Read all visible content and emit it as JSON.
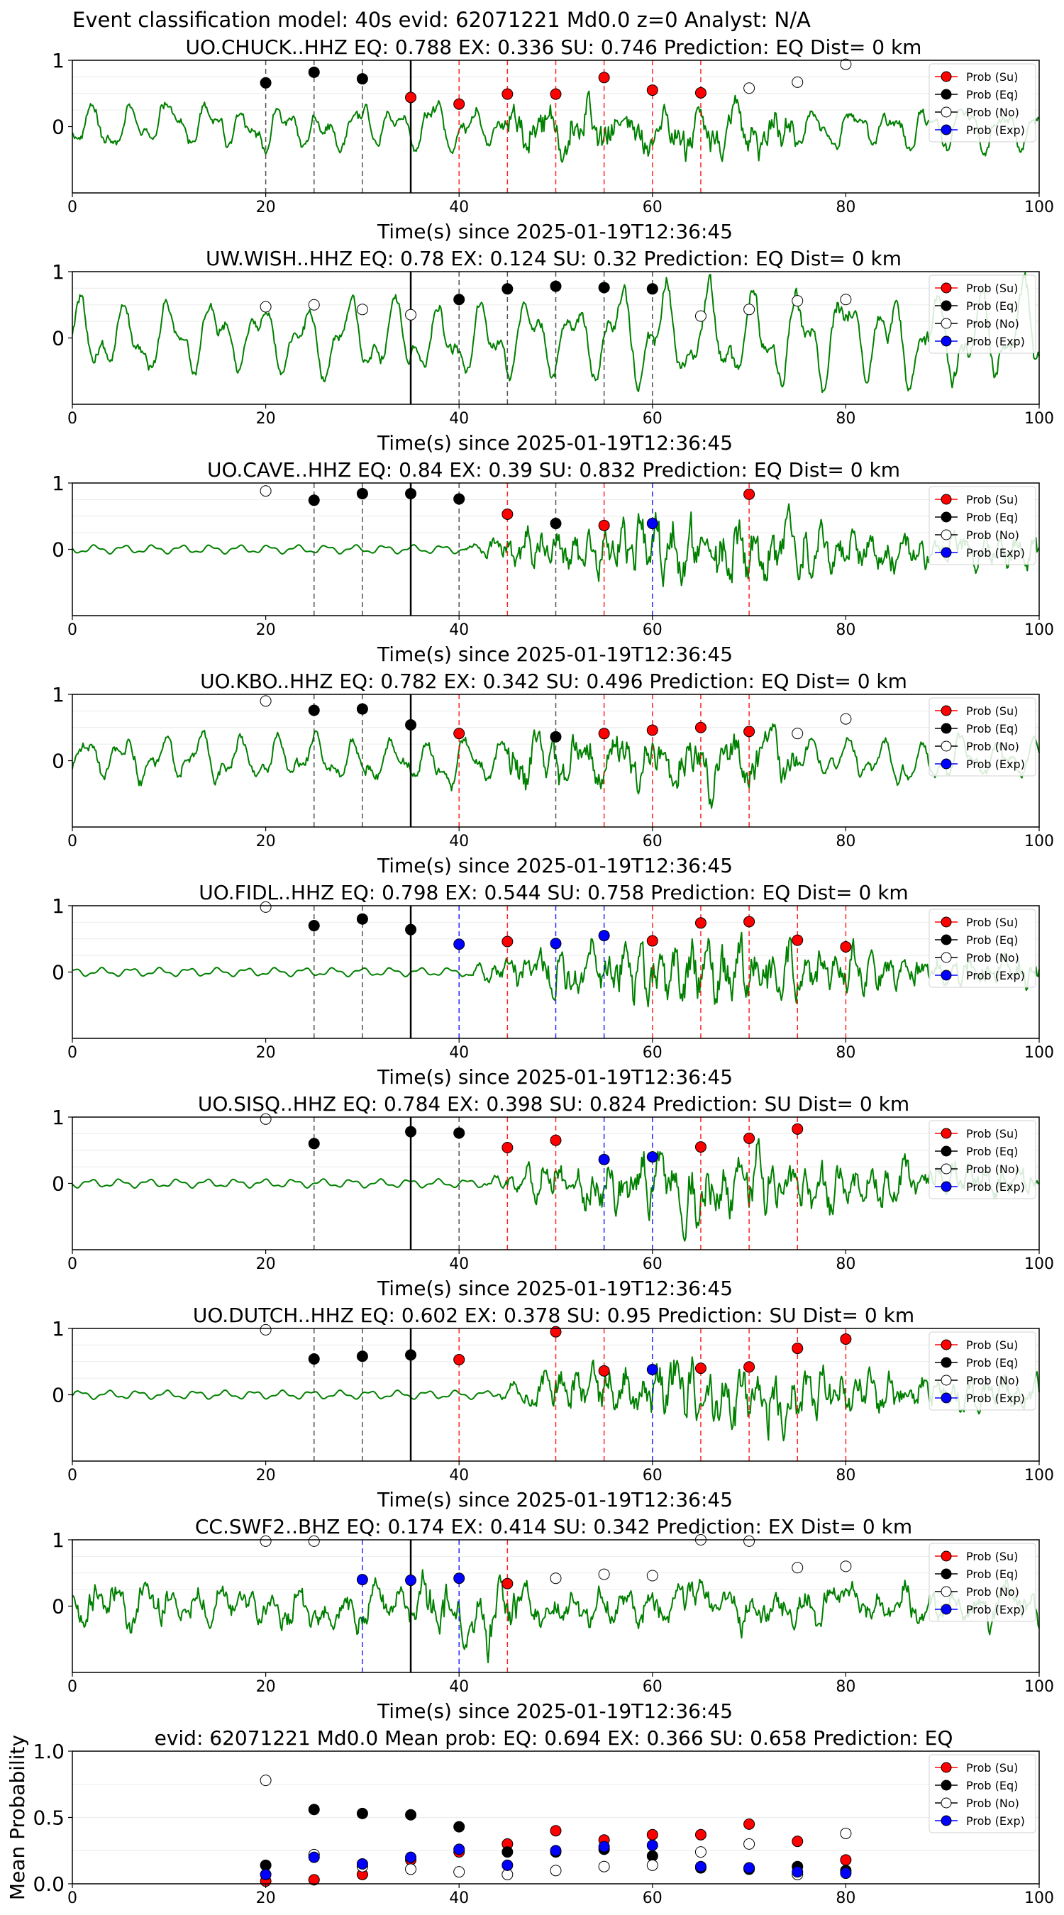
{
  "figure": {
    "suptitle": "Event classification model: 40s evid: 62071221 Md0.0 z=0 Analyst: N/A"
  },
  "legend_labels": [
    "Prob (Su)",
    "Prob (Eq)",
    "Prob (No)",
    "Prob (Exp)"
  ],
  "colors": {
    "trace": "#008000",
    "su": "#ff0000",
    "eq": "#000000",
    "no": "#ffffff",
    "exp": "#0000ff",
    "ref_line": "#000000",
    "grid": "#ebebeb"
  },
  "chart_data": [
    {
      "type": "line",
      "title": "UO.CHUCK..HHZ   EQ: 0.788  EX: 0.336  SU: 0.746   Prediction: EQ    Dist= 0 km",
      "xlabel": "Time(s) since 2025-01-19T12:36:45",
      "xlim": [
        0,
        100
      ],
      "xticks": [
        0,
        20,
        40,
        60,
        80,
        100
      ],
      "yticks": [
        0,
        1
      ],
      "legend_position": "top-right",
      "reference_line_x": 35,
      "amplitude_style": "moderate",
      "probabilities": [
        {
          "t": 20,
          "class": "eq",
          "p": 0.66
        },
        {
          "t": 25,
          "class": "eq",
          "p": 0.82
        },
        {
          "t": 30,
          "class": "eq",
          "p": 0.72
        },
        {
          "t": 35,
          "class": "su",
          "p": 0.44
        },
        {
          "t": 40,
          "class": "su",
          "p": 0.34
        },
        {
          "t": 45,
          "class": "su",
          "p": 0.49
        },
        {
          "t": 50,
          "class": "su",
          "p": 0.49
        },
        {
          "t": 55,
          "class": "su",
          "p": 0.74
        },
        {
          "t": 60,
          "class": "su",
          "p": 0.55
        },
        {
          "t": 65,
          "class": "su",
          "p": 0.51
        },
        {
          "t": 70,
          "class": "no",
          "p": 0.58
        },
        {
          "t": 75,
          "class": "no",
          "p": 0.67
        },
        {
          "t": 80,
          "class": "no",
          "p": 0.94
        }
      ]
    },
    {
      "type": "line",
      "title": "UW.WISH..HHZ   EQ: 0.78  EX: 0.124  SU: 0.32   Prediction: EQ    Dist= 0 km",
      "xlabel": "Time(s) since 2025-01-19T12:36:45",
      "xlim": [
        0,
        100
      ],
      "xticks": [
        0,
        20,
        40,
        60,
        80,
        100
      ],
      "yticks": [
        0,
        1
      ],
      "legend_position": "top-right",
      "reference_line_x": 35,
      "amplitude_style": "high",
      "probabilities": [
        {
          "t": 20,
          "class": "no",
          "p": 0.47
        },
        {
          "t": 25,
          "class": "no",
          "p": 0.5
        },
        {
          "t": 30,
          "class": "no",
          "p": 0.43
        },
        {
          "t": 35,
          "class": "no",
          "p": 0.35
        },
        {
          "t": 40,
          "class": "eq",
          "p": 0.58
        },
        {
          "t": 45,
          "class": "eq",
          "p": 0.74
        },
        {
          "t": 50,
          "class": "eq",
          "p": 0.78
        },
        {
          "t": 55,
          "class": "eq",
          "p": 0.76
        },
        {
          "t": 60,
          "class": "eq",
          "p": 0.74
        },
        {
          "t": 65,
          "class": "no",
          "p": 0.33
        },
        {
          "t": 70,
          "class": "no",
          "p": 0.43
        },
        {
          "t": 75,
          "class": "no",
          "p": 0.56
        },
        {
          "t": 80,
          "class": "no",
          "p": 0.58
        }
      ]
    },
    {
      "type": "line",
      "title": "UO.CAVE..HHZ   EQ: 0.84  EX: 0.39  SU: 0.832   Prediction: EQ    Dist= 0 km",
      "xlabel": "Time(s) since 2025-01-19T12:36:45",
      "xlim": [
        0,
        100
      ],
      "xticks": [
        0,
        20,
        40,
        60,
        80,
        100
      ],
      "yticks": [
        0,
        1
      ],
      "legend_position": "top-right",
      "reference_line_x": 35,
      "amplitude_style": "quiet-then-burst",
      "burst_start": 40,
      "probabilities": [
        {
          "t": 20,
          "class": "no",
          "p": 0.88
        },
        {
          "t": 25,
          "class": "eq",
          "p": 0.74
        },
        {
          "t": 30,
          "class": "eq",
          "p": 0.84
        },
        {
          "t": 35,
          "class": "eq",
          "p": 0.84
        },
        {
          "t": 40,
          "class": "eq",
          "p": 0.76
        },
        {
          "t": 45,
          "class": "su",
          "p": 0.53
        },
        {
          "t": 50,
          "class": "eq",
          "p": 0.39
        },
        {
          "t": 55,
          "class": "su",
          "p": 0.36
        },
        {
          "t": 60,
          "class": "exp",
          "p": 0.39
        },
        {
          "t": 70,
          "class": "su",
          "p": 0.83
        }
      ]
    },
    {
      "type": "line",
      "title": "UO.KBO..HHZ   EQ: 0.782  EX: 0.342  SU: 0.496   Prediction: EQ    Dist= 0 km",
      "xlabel": "Time(s) since 2025-01-19T12:36:45",
      "xlim": [
        0,
        100
      ],
      "xticks": [
        0,
        20,
        40,
        60,
        80,
        100
      ],
      "yticks": [
        0,
        1
      ],
      "legend_position": "top-right",
      "reference_line_x": 35,
      "amplitude_style": "moderate",
      "probabilities": [
        {
          "t": 20,
          "class": "no",
          "p": 0.9
        },
        {
          "t": 25,
          "class": "eq",
          "p": 0.76
        },
        {
          "t": 30,
          "class": "eq",
          "p": 0.78
        },
        {
          "t": 35,
          "class": "eq",
          "p": 0.54
        },
        {
          "t": 40,
          "class": "su",
          "p": 0.41
        },
        {
          "t": 50,
          "class": "eq",
          "p": 0.36
        },
        {
          "t": 55,
          "class": "su",
          "p": 0.41
        },
        {
          "t": 60,
          "class": "su",
          "p": 0.46
        },
        {
          "t": 65,
          "class": "su",
          "p": 0.5
        },
        {
          "t": 70,
          "class": "su",
          "p": 0.44
        },
        {
          "t": 75,
          "class": "no",
          "p": 0.41
        },
        {
          "t": 80,
          "class": "no",
          "p": 0.63
        }
      ]
    },
    {
      "type": "line",
      "title": "UO.FIDL..HHZ   EQ: 0.798  EX: 0.544  SU: 0.758   Prediction: EQ    Dist= 0 km",
      "xlabel": "Time(s) since 2025-01-19T12:36:45",
      "xlim": [
        0,
        100
      ],
      "xticks": [
        0,
        20,
        40,
        60,
        80,
        100
      ],
      "yticks": [
        0,
        1
      ],
      "legend_position": "top-right",
      "reference_line_x": 35,
      "amplitude_style": "quiet-then-burst",
      "burst_start": 40,
      "probabilities": [
        {
          "t": 20,
          "class": "no",
          "p": 0.98
        },
        {
          "t": 25,
          "class": "eq",
          "p": 0.7
        },
        {
          "t": 30,
          "class": "eq",
          "p": 0.8
        },
        {
          "t": 35,
          "class": "eq",
          "p": 0.64
        },
        {
          "t": 40,
          "class": "exp",
          "p": 0.42
        },
        {
          "t": 45,
          "class": "su",
          "p": 0.46
        },
        {
          "t": 50,
          "class": "exp",
          "p": 0.43
        },
        {
          "t": 55,
          "class": "exp",
          "p": 0.55
        },
        {
          "t": 60,
          "class": "su",
          "p": 0.47
        },
        {
          "t": 65,
          "class": "su",
          "p": 0.74
        },
        {
          "t": 70,
          "class": "su",
          "p": 0.76
        },
        {
          "t": 75,
          "class": "su",
          "p": 0.48
        },
        {
          "t": 80,
          "class": "su",
          "p": 0.38
        }
      ]
    },
    {
      "type": "line",
      "title": "UO.SISQ..HHZ   EQ: 0.784  EX: 0.398  SU: 0.824   Prediction: SU    Dist= 0 km",
      "xlabel": "Time(s) since 2025-01-19T12:36:45",
      "xlim": [
        0,
        100
      ],
      "xticks": [
        0,
        20,
        40,
        60,
        80,
        100
      ],
      "yticks": [
        0,
        1
      ],
      "legend_position": "top-right",
      "reference_line_x": 35,
      "amplitude_style": "quiet-then-burst",
      "burst_start": 42,
      "probabilities": [
        {
          "t": 20,
          "class": "no",
          "p": 0.97
        },
        {
          "t": 25,
          "class": "eq",
          "p": 0.6
        },
        {
          "t": 35,
          "class": "eq",
          "p": 0.78
        },
        {
          "t": 40,
          "class": "eq",
          "p": 0.76
        },
        {
          "t": 45,
          "class": "su",
          "p": 0.54
        },
        {
          "t": 50,
          "class": "su",
          "p": 0.65
        },
        {
          "t": 55,
          "class": "exp",
          "p": 0.36
        },
        {
          "t": 60,
          "class": "exp",
          "p": 0.4
        },
        {
          "t": 65,
          "class": "su",
          "p": 0.55
        },
        {
          "t": 70,
          "class": "su",
          "p": 0.68
        },
        {
          "t": 75,
          "class": "su",
          "p": 0.82
        }
      ]
    },
    {
      "type": "line",
      "title": "UO.DUTCH..HHZ   EQ: 0.602  EX: 0.378  SU: 0.95   Prediction: SU    Dist= 0 km",
      "xlabel": "Time(s) since 2025-01-19T12:36:45",
      "xlim": [
        0,
        100
      ],
      "xticks": [
        0,
        20,
        40,
        60,
        80,
        100
      ],
      "yticks": [
        0,
        1
      ],
      "legend_position": "top-right",
      "reference_line_x": 35,
      "amplitude_style": "quiet-then-burst",
      "burst_start": 43,
      "probabilities": [
        {
          "t": 20,
          "class": "no",
          "p": 0.98
        },
        {
          "t": 25,
          "class": "eq",
          "p": 0.54
        },
        {
          "t": 30,
          "class": "eq",
          "p": 0.58
        },
        {
          "t": 35,
          "class": "eq",
          "p": 0.6
        },
        {
          "t": 40,
          "class": "su",
          "p": 0.53
        },
        {
          "t": 50,
          "class": "su",
          "p": 0.95
        },
        {
          "t": 55,
          "class": "su",
          "p": 0.36
        },
        {
          "t": 60,
          "class": "exp",
          "p": 0.38
        },
        {
          "t": 65,
          "class": "su",
          "p": 0.4
        },
        {
          "t": 70,
          "class": "su",
          "p": 0.42
        },
        {
          "t": 75,
          "class": "su",
          "p": 0.7
        },
        {
          "t": 80,
          "class": "su",
          "p": 0.84
        }
      ]
    },
    {
      "type": "line",
      "title": "CC.SWF2..BHZ   EQ: 0.174  EX: 0.414  SU: 0.342   Prediction: EX    Dist= 0 km",
      "xlabel": "Time(s) since 2025-01-19T12:36:45",
      "xlim": [
        0,
        100
      ],
      "xticks": [
        0,
        20,
        40,
        60,
        80,
        100
      ],
      "yticks": [
        0,
        1
      ],
      "legend_position": "top-right",
      "reference_line_x": 35,
      "amplitude_style": "noisy",
      "probabilities": [
        {
          "t": 20,
          "class": "no",
          "p": 0.98
        },
        {
          "t": 25,
          "class": "no",
          "p": 0.98
        },
        {
          "t": 30,
          "class": "exp",
          "p": 0.4
        },
        {
          "t": 35,
          "class": "exp",
          "p": 0.39
        },
        {
          "t": 40,
          "class": "exp",
          "p": 0.42
        },
        {
          "t": 45,
          "class": "su",
          "p": 0.34
        },
        {
          "t": 50,
          "class": "no",
          "p": 0.42
        },
        {
          "t": 55,
          "class": "no",
          "p": 0.48
        },
        {
          "t": 60,
          "class": "no",
          "p": 0.46
        },
        {
          "t": 65,
          "class": "no",
          "p": 1.0
        },
        {
          "t": 70,
          "class": "no",
          "p": 0.98
        },
        {
          "t": 75,
          "class": "no",
          "p": 0.58
        },
        {
          "t": 80,
          "class": "no",
          "p": 0.6
        }
      ]
    },
    {
      "type": "scatter",
      "title": "evid: 62071221   Md0.0   Mean prob:    EQ: 0.694  EX: 0.366  SU: 0.658   Prediction: EQ",
      "xlabel": "",
      "ylabel": "Mean Probability",
      "xlim": [
        0,
        100
      ],
      "ylim": [
        0,
        1.0
      ],
      "xticks": [
        0,
        20,
        40,
        60,
        80,
        100
      ],
      "yticks": [
        0.0,
        0.5,
        1.0
      ],
      "ytick_labels": [
        "0.0",
        "0.5",
        "1.0"
      ],
      "legend_position": "top-right",
      "x": [
        20,
        25,
        30,
        35,
        40,
        45,
        50,
        55,
        60,
        65,
        70,
        75,
        80
      ],
      "series": [
        {
          "name": "Prob (Su)",
          "class": "su",
          "values": [
            0.02,
            0.03,
            0.07,
            0.18,
            0.24,
            0.3,
            0.4,
            0.33,
            0.37,
            0.37,
            0.45,
            0.32,
            0.18
          ]
        },
        {
          "name": "Prob (Eq)",
          "class": "eq",
          "values": [
            0.14,
            0.56,
            0.53,
            0.52,
            0.43,
            0.24,
            0.24,
            0.26,
            0.21,
            0.12,
            0.11,
            0.13,
            0.1
          ]
        },
        {
          "name": "Prob (No)",
          "class": "no",
          "values": [
            0.78,
            0.22,
            0.13,
            0.11,
            0.09,
            0.07,
            0.1,
            0.13,
            0.14,
            0.24,
            0.3,
            0.07,
            0.38
          ]
        },
        {
          "name": "Prob (Exp)",
          "class": "exp",
          "values": [
            0.07,
            0.2,
            0.15,
            0.2,
            0.26,
            0.14,
            0.25,
            0.28,
            0.29,
            0.13,
            0.12,
            0.09,
            0.08
          ]
        }
      ]
    }
  ]
}
